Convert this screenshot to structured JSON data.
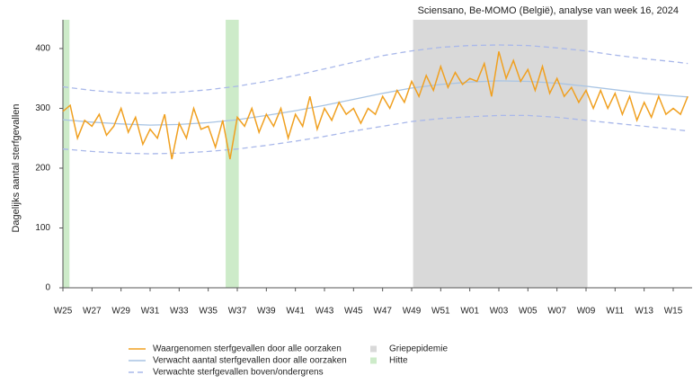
{
  "chart_data": {
    "type": "line",
    "title": "Sciensano, Be-MOMO (België), analyse van week 16, 2024",
    "ylabel": "Dagelijks aantal sterfgevallen",
    "xlim": [
      0,
      43.3
    ],
    "ylim": [
      0,
      430
    ],
    "xticks": [
      {
        "value": 0,
        "label": "W25"
      },
      {
        "value": 2,
        "label": "W27"
      },
      {
        "value": 4,
        "label": "W29"
      },
      {
        "value": 6,
        "label": "W31"
      },
      {
        "value": 8,
        "label": "W33"
      },
      {
        "value": 10,
        "label": "W35"
      },
      {
        "value": 12,
        "label": "W37"
      },
      {
        "value": 14,
        "label": "W39"
      },
      {
        "value": 16,
        "label": "W41"
      },
      {
        "value": 18,
        "label": "W43"
      },
      {
        "value": 20,
        "label": "W45"
      },
      {
        "value": 22,
        "label": "W47"
      },
      {
        "value": 24,
        "label": "W49"
      },
      {
        "value": 26,
        "label": "W51"
      },
      {
        "value": 28,
        "label": "W01"
      },
      {
        "value": 30,
        "label": "W03"
      },
      {
        "value": 32,
        "label": "W05"
      },
      {
        "value": 34,
        "label": "W07"
      },
      {
        "value": 36,
        "label": "W09"
      },
      {
        "value": 38,
        "label": "W11"
      },
      {
        "value": 40,
        "label": "W13"
      },
      {
        "value": 42,
        "label": "W15"
      }
    ],
    "yticks": [
      0,
      100,
      200,
      300,
      400
    ],
    "bands": [
      {
        "name": "Griepepidemie",
        "color": "#d9d9d9",
        "ranges": [
          [
            24.1,
            36.1
          ]
        ]
      },
      {
        "name": "Hitte",
        "color": "#cdebc9",
        "ranges": [
          [
            0,
            0.45
          ],
          [
            11.2,
            12.1
          ]
        ]
      }
    ],
    "series": [
      {
        "name": "Waargenomen sterfgevallen door alle oorzaken",
        "color": "#f0a020",
        "dash": false,
        "x": [
          0,
          0.5,
          1,
          1.5,
          2,
          2.5,
          3,
          3.5,
          4,
          4.5,
          5,
          5.5,
          6,
          6.5,
          7,
          7.5,
          8,
          8.5,
          9,
          9.5,
          10,
          10.5,
          11,
          11.5,
          12,
          12.5,
          13,
          13.5,
          14,
          14.5,
          15,
          15.5,
          16,
          16.5,
          17,
          17.5,
          18,
          18.5,
          19,
          19.5,
          20,
          20.5,
          21,
          21.5,
          22,
          22.5,
          23,
          23.5,
          24,
          24.5,
          25,
          25.5,
          26,
          26.5,
          27,
          27.5,
          28,
          28.5,
          29,
          29.5,
          30,
          30.5,
          31,
          31.5,
          32,
          32.5,
          33,
          33.5,
          34,
          34.5,
          35,
          35.5,
          36,
          36.5,
          37,
          37.5,
          38,
          38.5,
          39,
          39.5,
          40,
          40.5,
          41,
          41.5,
          42,
          42.5,
          43
        ],
        "values": [
          295,
          305,
          250,
          280,
          270,
          290,
          255,
          270,
          300,
          260,
          285,
          240,
          265,
          250,
          290,
          215,
          275,
          250,
          300,
          265,
          270,
          235,
          280,
          215,
          285,
          270,
          300,
          260,
          290,
          270,
          300,
          250,
          290,
          270,
          320,
          265,
          300,
          280,
          310,
          290,
          300,
          275,
          300,
          290,
          320,
          300,
          330,
          310,
          345,
          320,
          355,
          330,
          370,
          335,
          360,
          340,
          350,
          345,
          375,
          320,
          395,
          350,
          380,
          345,
          365,
          330,
          370,
          325,
          350,
          320,
          335,
          310,
          330,
          300,
          330,
          300,
          325,
          290,
          320,
          280,
          310,
          285,
          320,
          290,
          300,
          290,
          320
        ]
      },
      {
        "name": "Verwacht aantal sterfgevallen door alle oorzaken",
        "color": "#a8c4e4",
        "dash": false,
        "x": [
          0,
          2,
          4,
          6,
          8,
          10,
          12,
          14,
          16,
          18,
          20,
          22,
          24,
          26,
          28,
          30,
          32,
          34,
          36,
          38,
          40,
          42,
          43
        ],
        "values": [
          281,
          277,
          274,
          272,
          273,
          276,
          281,
          288,
          296,
          305,
          315,
          325,
          334,
          340,
          344,
          346,
          345,
          342,
          337,
          331,
          325,
          321,
          319
        ]
      },
      {
        "name": "Verwachte sterfgevallen boven/ondergrens",
        "color": "#a9b8ea",
        "dash": true,
        "x": [
          0,
          2,
          4,
          6,
          8,
          10,
          12,
          14,
          16,
          18,
          20,
          22,
          24,
          26,
          28,
          30,
          32,
          34,
          36,
          38,
          40,
          42,
          43
        ],
        "values": [
          336,
          330,
          326,
          325,
          327,
          331,
          337,
          345,
          355,
          366,
          377,
          388,
          396,
          402,
          405,
          406,
          405,
          401,
          396,
          389,
          383,
          378,
          375
        ]
      },
      {
        "name": null,
        "color": "#a9b8ea",
        "dash": true,
        "x": [
          0,
          2,
          4,
          6,
          8,
          10,
          12,
          14,
          16,
          18,
          20,
          22,
          24,
          26,
          28,
          30,
          32,
          34,
          36,
          38,
          40,
          42,
          43
        ],
        "values": [
          232,
          228,
          225,
          224,
          225,
          228,
          232,
          238,
          245,
          253,
          262,
          270,
          278,
          283,
          286,
          288,
          288,
          285,
          280,
          275,
          270,
          265,
          262
        ]
      }
    ]
  }
}
